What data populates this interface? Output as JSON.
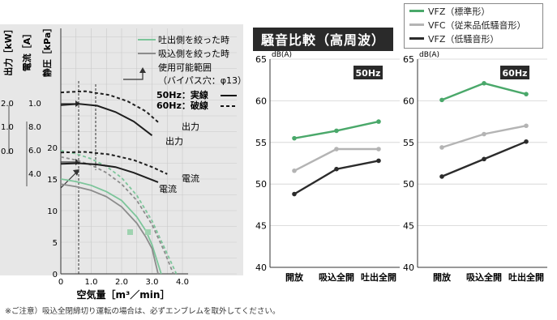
{
  "footnote": "※ご注意）吸込全閉締切り運転の場合は、必ずエンブレムを取外してください。",
  "noise_title": "騒音比較（高周波）",
  "chart_data": [
    {
      "type": "line",
      "id": "performance",
      "xlabel": "空気量［m³／min］",
      "axis_labels": {
        "power": "出力［kW］",
        "current": "電流［A］",
        "pressure": "静圧［kPa］"
      },
      "x_ticks": [
        "0",
        "1.0",
        "2.0",
        "3.0",
        "4.0"
      ],
      "pressure_ticks": [
        "0",
        "5",
        "10",
        "15",
        "20"
      ],
      "current_ticks": [
        "4.0",
        "6.0",
        "8.0",
        "1.0"
      ],
      "power_ticks": [
        "0.0",
        "1.0",
        "2.0"
      ],
      "xlim": [
        0,
        4.0
      ],
      "ylim": [
        0,
        20
      ],
      "legend": [
        {
          "label": "吐出側を絞った時",
          "color": "#7cc59a"
        },
        {
          "label": "吸込側を絞った時",
          "color": "#8c8c8c"
        },
        {
          "label": "使用可能範囲"
        },
        {
          "label": "（バイパス穴：φ13）"
        },
        {
          "label": "50Hz：実線"
        },
        {
          "label": "60Hz：破線"
        }
      ],
      "annotations": [
        "出力",
        "出力",
        "電流",
        "電流"
      ],
      "series": [
        {
          "name": "吐出側を絞った時",
          "hz": "50Hz",
          "color": "#7cc59a",
          "dash": false,
          "points": [
            [
              0,
              15
            ],
            [
              0.5,
              14.6
            ],
            [
              1.0,
              14
            ],
            [
              1.5,
              13
            ],
            [
              2.0,
              11.6
            ],
            [
              2.5,
              9.0
            ],
            [
              2.8,
              6.8
            ],
            [
              3.0,
              4.6
            ],
            [
              3.3,
              0
            ]
          ]
        },
        {
          "name": "吐出側を絞った時",
          "hz": "60Hz",
          "color": "#7cc59a",
          "dash": true,
          "points": [
            [
              0,
              19.5
            ],
            [
              0.5,
              19
            ],
            [
              1.0,
              18.2
            ],
            [
              1.5,
              17
            ],
            [
              2.0,
              15.2
            ],
            [
              2.5,
              12.4
            ],
            [
              3.0,
              8.4
            ],
            [
              3.4,
              4.2
            ],
            [
              3.8,
              0
            ]
          ]
        },
        {
          "name": "吸込側を絞った時",
          "hz": "50Hz",
          "color": "#8c8c8c",
          "dash": false,
          "points": [
            [
              0,
              14.2
            ],
            [
              0.5,
              13.8
            ],
            [
              1.0,
              13.2
            ],
            [
              1.5,
              12.2
            ],
            [
              2.0,
              10.6
            ],
            [
              2.5,
              8.0
            ],
            [
              2.8,
              5.8
            ],
            [
              3.0,
              4.0
            ],
            [
              3.2,
              0
            ]
          ]
        },
        {
          "name": "吸込側を絞った時",
          "hz": "60Hz",
          "color": "#8c8c8c",
          "dash": true,
          "points": [
            [
              0,
              18.5
            ],
            [
              0.5,
              18
            ],
            [
              1.0,
              17.2
            ],
            [
              1.5,
              16
            ],
            [
              2.0,
              14.2
            ],
            [
              2.5,
              11.6
            ],
            [
              3.0,
              7.8
            ],
            [
              3.4,
              3.6
            ],
            [
              3.7,
              0
            ]
          ]
        },
        {
          "name": "出力",
          "hz": "50Hz",
          "color": "#1e1e1e",
          "dash": false,
          "points": [
            [
              0,
              26.7
            ],
            [
              0.6,
              26.9
            ],
            [
              1.2,
              26.6
            ],
            [
              1.8,
              25.6
            ],
            [
              2.4,
              24.1
            ],
            [
              3.0,
              21.9
            ]
          ]
        },
        {
          "name": "出力",
          "hz": "60Hz",
          "color": "#1e1e1e",
          "dash": true,
          "points": [
            [
              0,
              28.7
            ],
            [
              0.8,
              28.9
            ],
            [
              1.6,
              28.3
            ],
            [
              2.2,
              27.3
            ],
            [
              2.8,
              25.7
            ],
            [
              3.2,
              24.0
            ]
          ]
        },
        {
          "name": "電流",
          "hz": "50Hz",
          "color": "#1e1e1e",
          "dash": false,
          "points": [
            [
              0,
              17.4
            ],
            [
              0.6,
              17.5
            ],
            [
              1.2,
              17.3
            ],
            [
              1.8,
              16.9
            ],
            [
              2.4,
              16.0
            ],
            [
              3.2,
              14.5
            ]
          ]
        },
        {
          "name": "電流",
          "hz": "60Hz",
          "color": "#1e1e1e",
          "dash": true,
          "points": [
            [
              0,
              19.2
            ],
            [
              0.8,
              19.3
            ],
            [
              1.6,
              18.9
            ],
            [
              2.4,
              18.0
            ],
            [
              3.0,
              16.9
            ],
            [
              3.5,
              15.8
            ]
          ]
        }
      ]
    },
    {
      "type": "line",
      "id": "noise-50hz",
      "frequency_label": "50Hz",
      "y_unit": "dB(A)",
      "categories": [
        "開放",
        "吸込全開",
        "吐出全開"
      ],
      "ylim": [
        40,
        65
      ],
      "y_ticks": [
        "40",
        "45",
        "50",
        "55",
        "60",
        "65"
      ],
      "series": [
        {
          "name": "VFZ（標準形）",
          "color": "#4aa86a",
          "values": [
            55.5,
            56.4,
            57.5
          ]
        },
        {
          "name": "VFC（従来品低騒音形）",
          "color": "#b4b4b4",
          "values": [
            51.6,
            54.2,
            54.2
          ]
        },
        {
          "name": "VFZ（低騒音形）",
          "color": "#2b2b2b",
          "values": [
            48.8,
            51.8,
            52.8
          ]
        }
      ]
    },
    {
      "type": "line",
      "id": "noise-60hz",
      "frequency_label": "60Hz",
      "y_unit": "dB(A)",
      "categories": [
        "開放",
        "吸込全開",
        "吐出全開"
      ],
      "ylim": [
        40,
        65
      ],
      "y_ticks": [
        "40",
        "45",
        "50",
        "55",
        "60",
        "65"
      ],
      "series": [
        {
          "name": "VFZ（標準形）",
          "color": "#4aa86a",
          "values": [
            60.1,
            62.1,
            60.8
          ]
        },
        {
          "name": "VFC（従来品低騒音形）",
          "color": "#b4b4b4",
          "values": [
            54.4,
            56.0,
            57.0
          ]
        },
        {
          "name": "VFZ（低騒音形）",
          "color": "#2b2b2b",
          "values": [
            50.9,
            53.0,
            55.1
          ]
        }
      ]
    }
  ]
}
